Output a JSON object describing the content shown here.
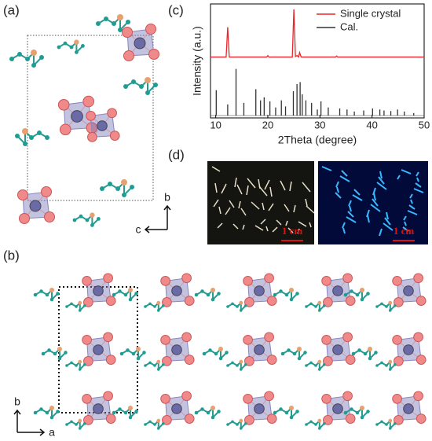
{
  "panels": {
    "a": {
      "label": "(a)",
      "axes": [
        "b",
        "c"
      ]
    },
    "b": {
      "label": "(b)",
      "axes": [
        "b",
        "a"
      ]
    },
    "c": {
      "label": "(c)"
    },
    "d": {
      "label": "(d)",
      "scale_bars": [
        "1 cm",
        "1 cm"
      ]
    }
  },
  "chart_data": {
    "type": "line",
    "xlabel": "2Theta (degree)",
    "ylabel": "Intensity (a.u.)",
    "xlim": [
      9,
      50
    ],
    "xticks": [
      10,
      20,
      30,
      40,
      50
    ],
    "ylim": [
      0,
      100
    ],
    "legend": "top-right",
    "series": [
      {
        "name": "Single crystal",
        "color": "#e8262b",
        "style": "line",
        "x": [
          9,
          12,
          12.3,
          12.6,
          19.8,
          20,
          20.2,
          24.7,
          25,
          25.3,
          25.6,
          25.9,
          26.1,
          26.4,
          33,
          33.2,
          33.4,
          50
        ],
        "values": [
          3,
          3,
          62,
          3,
          3,
          6,
          3,
          3,
          97,
          4,
          6,
          3,
          12,
          3,
          3,
          5,
          3,
          3
        ]
      },
      {
        "name": "Cal.",
        "color": "#333333",
        "style": "stick",
        "x": [
          10.1,
          12.3,
          13.9,
          15.4,
          17.7,
          18.6,
          19.3,
          20.4,
          21.5,
          22.6,
          23.4,
          24.9,
          25.6,
          26.2,
          26.6,
          27.3,
          28.4,
          29.5,
          30.2,
          31.6,
          33.8,
          35.2,
          36.6,
          38.4,
          40.1,
          41.5,
          42.3,
          43.6,
          44.9,
          46.2,
          48
        ],
        "values": [
          50,
          22,
          92,
          25,
          52,
          30,
          36,
          28,
          16,
          30,
          18,
          48,
          62,
          66,
          42,
          30,
          25,
          12,
          28,
          16,
          14,
          12,
          8,
          10,
          14,
          12,
          10,
          9,
          12,
          8,
          5
        ]
      }
    ]
  }
}
